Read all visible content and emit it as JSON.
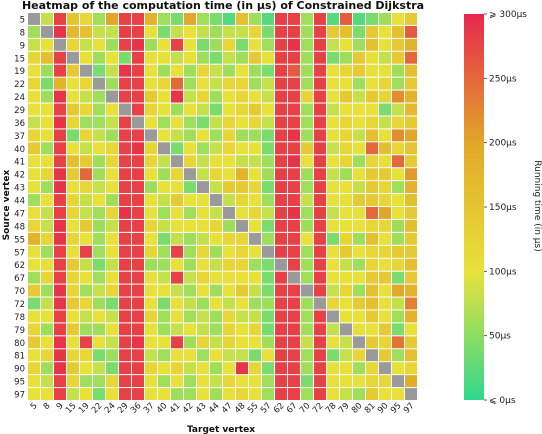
{
  "chart_data": {
    "type": "heatmap",
    "title": "Heatmap of the computation time (in μs) of Constrained Dijkstra",
    "xlabel": "Target vertex",
    "ylabel": "Source vertex",
    "x_categories": [
      "5",
      "8",
      "9",
      "15",
      "19",
      "22",
      "24",
      "29",
      "36",
      "37",
      "40",
      "41",
      "42",
      "43",
      "44",
      "47",
      "48",
      "55",
      "57",
      "62",
      "67",
      "70",
      "72",
      "78",
      "79",
      "80",
      "81",
      "90",
      "95",
      "97"
    ],
    "y_categories": [
      "5",
      "8",
      "9",
      "15",
      "19",
      "22",
      "24",
      "29",
      "36",
      "37",
      "40",
      "41",
      "42",
      "43",
      "44",
      "47",
      "48",
      "55",
      "57",
      "62",
      "67",
      "70",
      "72",
      "78",
      "79",
      "80",
      "81",
      "90",
      "95",
      "97"
    ],
    "value_range": [
      0,
      300
    ],
    "diagonal": "no value (gray)",
    "values": [
      [
        null,
        80,
        280,
        150,
        120,
        60,
        200,
        280,
        280,
        180,
        60,
        40,
        200,
        60,
        40,
        20,
        160,
        60,
        20,
        280,
        280,
        60,
        280,
        20,
        260,
        20,
        40,
        60,
        100,
        140
      ],
      [
        60,
        null,
        290,
        170,
        160,
        80,
        80,
        280,
        280,
        100,
        40,
        80,
        100,
        80,
        60,
        80,
        80,
        120,
        40,
        280,
        280,
        60,
        280,
        140,
        160,
        40,
        140,
        100,
        160,
        260
      ],
      [
        80,
        100,
        null,
        120,
        80,
        100,
        60,
        280,
        290,
        60,
        100,
        280,
        100,
        40,
        60,
        120,
        40,
        100,
        60,
        280,
        290,
        60,
        280,
        80,
        100,
        60,
        160,
        100,
        140,
        180
      ],
      [
        120,
        160,
        280,
        null,
        100,
        60,
        100,
        40,
        280,
        100,
        100,
        80,
        100,
        60,
        40,
        80,
        60,
        140,
        100,
        280,
        280,
        60,
        280,
        40,
        60,
        140,
        100,
        80,
        140,
        250
      ],
      [
        100,
        60,
        280,
        140,
        null,
        40,
        80,
        290,
        280,
        100,
        60,
        100,
        60,
        120,
        80,
        60,
        100,
        60,
        40,
        280,
        260,
        60,
        280,
        100,
        120,
        140,
        100,
        100,
        60,
        160
      ],
      [
        120,
        40,
        180,
        100,
        120,
        null,
        60,
        280,
        280,
        100,
        120,
        250,
        60,
        100,
        80,
        120,
        120,
        60,
        80,
        280,
        280,
        60,
        280,
        100,
        100,
        60,
        100,
        120,
        60,
        140
      ],
      [
        100,
        60,
        290,
        100,
        80,
        60,
        null,
        280,
        280,
        140,
        100,
        290,
        80,
        120,
        60,
        100,
        120,
        100,
        80,
        280,
        280,
        120,
        280,
        100,
        140,
        80,
        140,
        120,
        220,
        180
      ],
      [
        100,
        100,
        280,
        140,
        120,
        60,
        100,
        null,
        280,
        120,
        100,
        60,
        100,
        80,
        40,
        100,
        120,
        140,
        100,
        280,
        280,
        60,
        280,
        80,
        100,
        100,
        100,
        40,
        80,
        170
      ],
      [
        80,
        100,
        290,
        120,
        60,
        60,
        80,
        280,
        null,
        100,
        60,
        100,
        60,
        40,
        80,
        120,
        100,
        120,
        80,
        280,
        280,
        60,
        280,
        100,
        120,
        100,
        120,
        80,
        120,
        140
      ],
      [
        120,
        100,
        280,
        40,
        120,
        80,
        60,
        280,
        280,
        null,
        100,
        80,
        60,
        100,
        60,
        120,
        60,
        60,
        40,
        280,
        290,
        60,
        280,
        100,
        120,
        80,
        160,
        100,
        220,
        200
      ],
      [
        140,
        60,
        280,
        100,
        80,
        100,
        120,
        280,
        290,
        120,
        null,
        40,
        100,
        60,
        80,
        120,
        100,
        100,
        40,
        280,
        280,
        140,
        280,
        80,
        120,
        100,
        250,
        160,
        120,
        150
      ],
      [
        100,
        100,
        280,
        160,
        140,
        60,
        120,
        280,
        280,
        120,
        80,
        null,
        120,
        80,
        100,
        100,
        80,
        80,
        60,
        280,
        290,
        100,
        280,
        100,
        120,
        60,
        120,
        100,
        250,
        140
      ],
      [
        100,
        120,
        290,
        140,
        250,
        60,
        100,
        280,
        280,
        100,
        60,
        120,
        null,
        80,
        120,
        100,
        180,
        100,
        60,
        280,
        280,
        60,
        280,
        80,
        60,
        100,
        140,
        140,
        100,
        210
      ],
      [
        100,
        60,
        290,
        100,
        120,
        80,
        100,
        280,
        280,
        60,
        100,
        100,
        40,
        null,
        80,
        140,
        140,
        120,
        40,
        280,
        280,
        60,
        280,
        100,
        100,
        80,
        140,
        120,
        60,
        180
      ],
      [
        60,
        100,
        280,
        120,
        80,
        100,
        60,
        280,
        280,
        100,
        80,
        140,
        100,
        100,
        null,
        80,
        120,
        100,
        60,
        280,
        280,
        80,
        280,
        100,
        100,
        140,
        140,
        120,
        100,
        160
      ],
      [
        100,
        80,
        280,
        120,
        80,
        60,
        120,
        290,
        280,
        100,
        60,
        100,
        60,
        100,
        80,
        null,
        100,
        120,
        80,
        280,
        290,
        60,
        280,
        80,
        100,
        100,
        250,
        200,
        100,
        140
      ],
      [
        120,
        80,
        290,
        100,
        140,
        60,
        80,
        280,
        280,
        120,
        80,
        100,
        100,
        100,
        120,
        60,
        null,
        100,
        40,
        280,
        280,
        60,
        280,
        100,
        100,
        100,
        120,
        120,
        60,
        160
      ],
      [
        180,
        120,
        290,
        120,
        100,
        60,
        100,
        280,
        280,
        100,
        40,
        80,
        60,
        80,
        100,
        120,
        120,
        null,
        60,
        280,
        280,
        100,
        280,
        40,
        120,
        60,
        160,
        100,
        60,
        140
      ],
      [
        100,
        60,
        280,
        100,
        280,
        60,
        100,
        280,
        280,
        120,
        60,
        280,
        60,
        120,
        60,
        100,
        120,
        100,
        null,
        280,
        280,
        60,
        280,
        100,
        140,
        100,
        120,
        120,
        140,
        140
      ],
      [
        100,
        100,
        280,
        140,
        80,
        40,
        80,
        280,
        280,
        60,
        60,
        100,
        60,
        100,
        80,
        120,
        120,
        60,
        40,
        null,
        280,
        60,
        280,
        100,
        80,
        60,
        120,
        100,
        120,
        160
      ],
      [
        60,
        120,
        280,
        120,
        100,
        60,
        100,
        280,
        280,
        100,
        80,
        280,
        80,
        120,
        100,
        100,
        100,
        100,
        40,
        280,
        null,
        60,
        280,
        100,
        100,
        100,
        140,
        140,
        40,
        140
      ],
      [
        140,
        60,
        290,
        120,
        60,
        80,
        120,
        280,
        280,
        100,
        100,
        80,
        60,
        100,
        60,
        100,
        140,
        80,
        40,
        280,
        280,
        null,
        280,
        80,
        120,
        60,
        160,
        100,
        200,
        180
      ],
      [
        40,
        80,
        290,
        140,
        120,
        60,
        40,
        280,
        280,
        100,
        40,
        100,
        80,
        60,
        100,
        80,
        100,
        60,
        60,
        280,
        280,
        60,
        null,
        120,
        100,
        140,
        160,
        100,
        80,
        230
      ],
      [
        100,
        100,
        280,
        100,
        80,
        100,
        80,
        280,
        280,
        120,
        60,
        100,
        60,
        80,
        60,
        120,
        80,
        80,
        40,
        280,
        280,
        60,
        280,
        null,
        100,
        100,
        140,
        100,
        60,
        180
      ],
      [
        120,
        60,
        280,
        140,
        60,
        60,
        100,
        280,
        280,
        100,
        60,
        80,
        100,
        80,
        60,
        120,
        100,
        120,
        40,
        280,
        280,
        60,
        280,
        80,
        null,
        100,
        100,
        140,
        40,
        100
      ],
      [
        140,
        100,
        290,
        100,
        280,
        100,
        80,
        280,
        290,
        100,
        100,
        280,
        60,
        120,
        80,
        120,
        100,
        100,
        60,
        280,
        280,
        80,
        280,
        100,
        80,
        null,
        140,
        120,
        240,
        140
      ],
      [
        100,
        120,
        290,
        120,
        120,
        40,
        60,
        280,
        280,
        80,
        60,
        100,
        100,
        60,
        100,
        80,
        80,
        40,
        100,
        280,
        280,
        60,
        280,
        40,
        80,
        120,
        null,
        140,
        60,
        160
      ],
      [
        120,
        60,
        290,
        140,
        100,
        80,
        40,
        280,
        280,
        120,
        100,
        120,
        80,
        100,
        60,
        100,
        290,
        120,
        40,
        280,
        280,
        60,
        280,
        100,
        100,
        60,
        120,
        null,
        100,
        120
      ],
      [
        100,
        80,
        280,
        120,
        60,
        60,
        120,
        280,
        280,
        100,
        60,
        100,
        60,
        100,
        80,
        120,
        100,
        100,
        60,
        280,
        280,
        40,
        280,
        100,
        100,
        100,
        120,
        120,
        null,
        190
      ],
      [
        100,
        100,
        280,
        80,
        100,
        40,
        100,
        280,
        280,
        100,
        100,
        60,
        60,
        100,
        60,
        100,
        120,
        100,
        60,
        280,
        280,
        60,
        280,
        100,
        80,
        60,
        140,
        100,
        100,
        null
      ]
    ],
    "colorbar": {
      "label": "Running time (in μs)",
      "ticks": [
        {
          "value": 0,
          "label": "⩽ 0μs"
        },
        {
          "value": 50,
          "label": "50μs"
        },
        {
          "value": 100,
          "label": "100μs"
        },
        {
          "value": 150,
          "label": "150μs"
        },
        {
          "value": 200,
          "label": "200μs"
        },
        {
          "value": 250,
          "label": "250μs"
        },
        {
          "value": 300,
          "label": "⩾ 300μs"
        }
      ]
    },
    "colors": {
      "low": "#2fd88e",
      "mid_low": "#e8e23a",
      "mid": "#e2a928",
      "high": "#e8274f",
      "missing": "#9a9a9a"
    }
  }
}
